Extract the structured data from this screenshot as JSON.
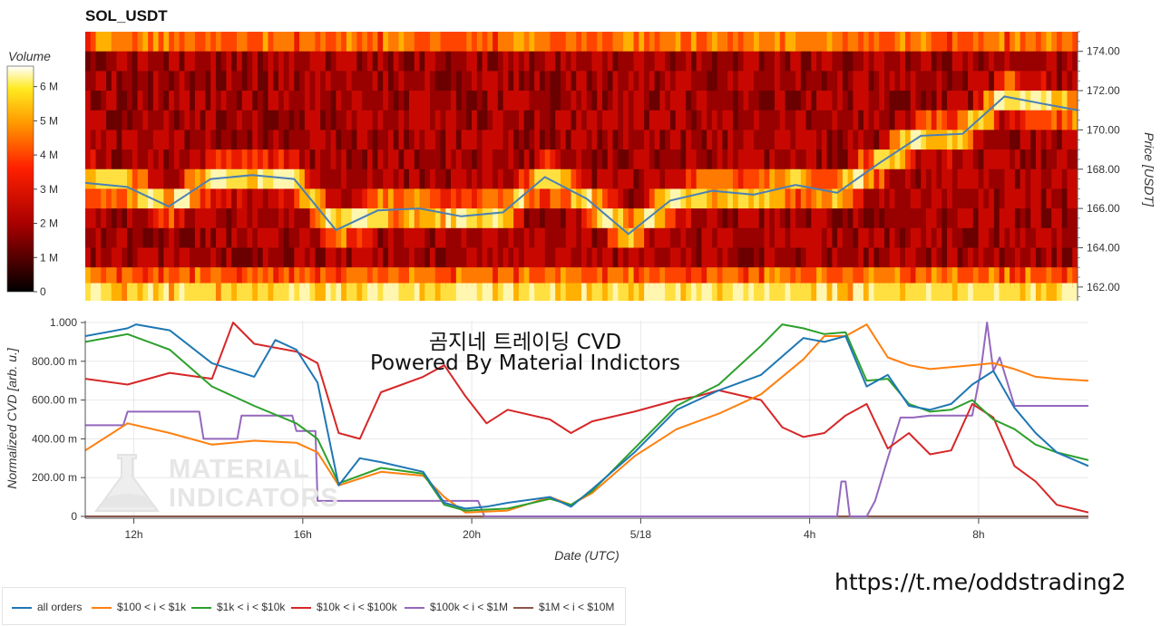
{
  "header": {
    "title": "SOL_USDT"
  },
  "overlay": {
    "line1": "곰지네 트레이딩 CVD",
    "line2": "Powered By Material Indictors"
  },
  "footer": {
    "url": "https://t.me/oddstrading2"
  },
  "watermark": {
    "line1": "MATERIAL",
    "line2": "INDICATORS"
  },
  "colors": {
    "all_orders": "#1f77b4",
    "b100_1k": "#ff7f0e",
    "b1k_10k": "#2ca02c",
    "b10k_100k": "#d62728",
    "b100k_1m": "#9467bd",
    "b1m_10m": "#8c564b",
    "price_line": "#4a7fb5"
  },
  "chart_data": [
    {
      "type": "heatmap",
      "title": "SOL_USDT",
      "ylabel": "Price [USDT]",
      "y_ticks": [
        "162.00",
        "164.00",
        "166.00",
        "168.00",
        "170.00",
        "172.00",
        "174.00"
      ],
      "ylim": [
        161.3,
        175.0
      ],
      "xlim": [
        0,
        23.75
      ],
      "colorbar": {
        "label": "Volume",
        "ticks": [
          "0",
          "1 M",
          "2 M",
          "3 M",
          "4 M",
          "5 M",
          "6 M"
        ],
        "range": [
          0,
          6600000
        ]
      },
      "price_levels": [
        174.5,
        173.5,
        172.5,
        171.5,
        170.5,
        169.5,
        168.5,
        167.5,
        166.5,
        165.5,
        164.5,
        163.5,
        162.5,
        161.7
      ],
      "price_line": {
        "x": [
          0,
          1,
          2,
          3,
          4,
          5,
          6,
          7,
          8,
          9,
          10,
          11,
          12,
          13,
          14,
          15,
          16,
          17,
          18,
          19,
          20,
          21,
          22,
          23.75
        ],
        "y": [
          167.3,
          167.1,
          166.1,
          167.5,
          167.7,
          167.5,
          164.9,
          165.9,
          166.0,
          165.6,
          165.8,
          167.6,
          166.5,
          164.7,
          166.4,
          166.9,
          166.7,
          167.2,
          166.8,
          168.3,
          169.7,
          169.8,
          171.7,
          171.0
        ]
      }
    },
    {
      "type": "line",
      "xlabel": "Date (UTC)",
      "ylabel": "Normalized CVD [arb. u.]",
      "x_ticks": [
        "12h",
        "16h",
        "20h",
        "5/18",
        "4h",
        "8h"
      ],
      "x_tick_values": [
        1.15,
        5.15,
        9.15,
        13.15,
        17.15,
        21.15
      ],
      "y_ticks": [
        "0",
        "200.00 m",
        "400.00 m",
        "600.00 m",
        "800.00 m",
        "1.000"
      ],
      "ylim": [
        0,
        1
      ],
      "xlim": [
        0,
        23.75
      ],
      "series": [
        {
          "name": "all orders",
          "color": "#1f77b4",
          "x": [
            0,
            1,
            1.2,
            2,
            3,
            4,
            4.5,
            5,
            5.5,
            6,
            6.5,
            7,
            8,
            8.5,
            9,
            9.5,
            10,
            11,
            11.5,
            12,
            13,
            14,
            15,
            16,
            17,
            17.5,
            18,
            18.5,
            19,
            19.5,
            20,
            20.5,
            21,
            21.5,
            22,
            22.5,
            23,
            23.75
          ],
          "y": [
            0.93,
            0.97,
            0.99,
            0.96,
            0.79,
            0.72,
            0.91,
            0.86,
            0.69,
            0.16,
            0.3,
            0.28,
            0.23,
            0.07,
            0.04,
            0.05,
            0.07,
            0.1,
            0.05,
            0.14,
            0.33,
            0.55,
            0.65,
            0.73,
            0.92,
            0.9,
            0.93,
            0.67,
            0.73,
            0.57,
            0.55,
            0.58,
            0.68,
            0.75,
            0.56,
            0.43,
            0.33,
            0.26
          ]
        },
        {
          "name": "$100 < i < $1k",
          "color": "#ff7f0e",
          "x": [
            0,
            1,
            2,
            3,
            4,
            5,
            5.5,
            6,
            7,
            8,
            8.5,
            9,
            10,
            11,
            11.5,
            12,
            13,
            14,
            15,
            16,
            17,
            17.5,
            18,
            18.5,
            19,
            19.5,
            20,
            21,
            21.5,
            22,
            22.5,
            23,
            23.75
          ],
          "y": [
            0.34,
            0.48,
            0.43,
            0.37,
            0.39,
            0.38,
            0.33,
            0.16,
            0.23,
            0.21,
            0.1,
            0.02,
            0.03,
            0.1,
            0.06,
            0.12,
            0.31,
            0.45,
            0.53,
            0.63,
            0.81,
            0.93,
            0.93,
            0.99,
            0.82,
            0.78,
            0.76,
            0.78,
            0.79,
            0.76,
            0.72,
            0.71,
            0.7
          ]
        },
        {
          "name": "$1k < i < $10k",
          "color": "#2ca02c",
          "x": [
            0,
            1,
            2,
            3,
            4,
            5,
            5.5,
            6,
            7,
            8,
            8.5,
            9,
            10,
            11,
            11.5,
            12,
            13,
            14,
            15,
            16,
            16.5,
            17,
            17.5,
            18,
            18.5,
            19,
            19.5,
            20,
            20.5,
            21,
            21.5,
            22,
            22.5,
            23,
            23.75
          ],
          "y": [
            0.9,
            0.94,
            0.86,
            0.67,
            0.57,
            0.48,
            0.4,
            0.17,
            0.25,
            0.22,
            0.06,
            0.03,
            0.04,
            0.09,
            0.06,
            0.13,
            0.35,
            0.57,
            0.68,
            0.88,
            0.99,
            0.97,
            0.94,
            0.95,
            0.7,
            0.71,
            0.58,
            0.54,
            0.55,
            0.6,
            0.5,
            0.45,
            0.37,
            0.33,
            0.29
          ]
        },
        {
          "name": "$10k < i < $100k",
          "color": "#d62728",
          "x": [
            0,
            1,
            2,
            3,
            3.5,
            4,
            5,
            5.5,
            6,
            6.5,
            7,
            8,
            8.5,
            9,
            9.5,
            10,
            11,
            11.5,
            12,
            13,
            14,
            14.5,
            15,
            16,
            16.5,
            17,
            17.5,
            18,
            18.5,
            19,
            19.5,
            20,
            20.5,
            21,
            21.5,
            22,
            22.5,
            23,
            23.75
          ],
          "y": [
            0.71,
            0.68,
            0.74,
            0.71,
            1.0,
            0.89,
            0.85,
            0.79,
            0.43,
            0.4,
            0.64,
            0.72,
            0.78,
            0.62,
            0.48,
            0.55,
            0.5,
            0.43,
            0.49,
            0.54,
            0.6,
            0.62,
            0.65,
            0.6,
            0.46,
            0.41,
            0.43,
            0.52,
            0.58,
            0.35,
            0.43,
            0.32,
            0.34,
            0.58,
            0.51,
            0.26,
            0.18,
            0.06,
            0.02
          ]
        },
        {
          "name": "$100k < i < $1M",
          "color": "#9467bd",
          "x": [
            0,
            0.9,
            1,
            2.7,
            2.8,
            3.6,
            3.7,
            4.9,
            5.0,
            5.45,
            5.5,
            9.3,
            9.45,
            17.8,
            17.9,
            18.0,
            18.1,
            18.5,
            18.7,
            19.0,
            19.3,
            19.6,
            20.0,
            20.5,
            21.0,
            21.2,
            21.35,
            21.5,
            21.65,
            22,
            23.75
          ],
          "y": [
            0.47,
            0.47,
            0.54,
            0.54,
            0.4,
            0.4,
            0.52,
            0.52,
            0.44,
            0.44,
            0.08,
            0.08,
            0.0,
            0.0,
            0.18,
            0.18,
            0.0,
            0.0,
            0.08,
            0.3,
            0.51,
            0.51,
            0.52,
            0.52,
            0.52,
            0.75,
            1.0,
            0.75,
            0.82,
            0.57,
            0.57
          ]
        },
        {
          "name": "$1M < i < $10M",
          "color": "#8c564b",
          "x": [
            0,
            23.75
          ],
          "y": [
            0.0,
            0.0
          ]
        }
      ]
    }
  ]
}
